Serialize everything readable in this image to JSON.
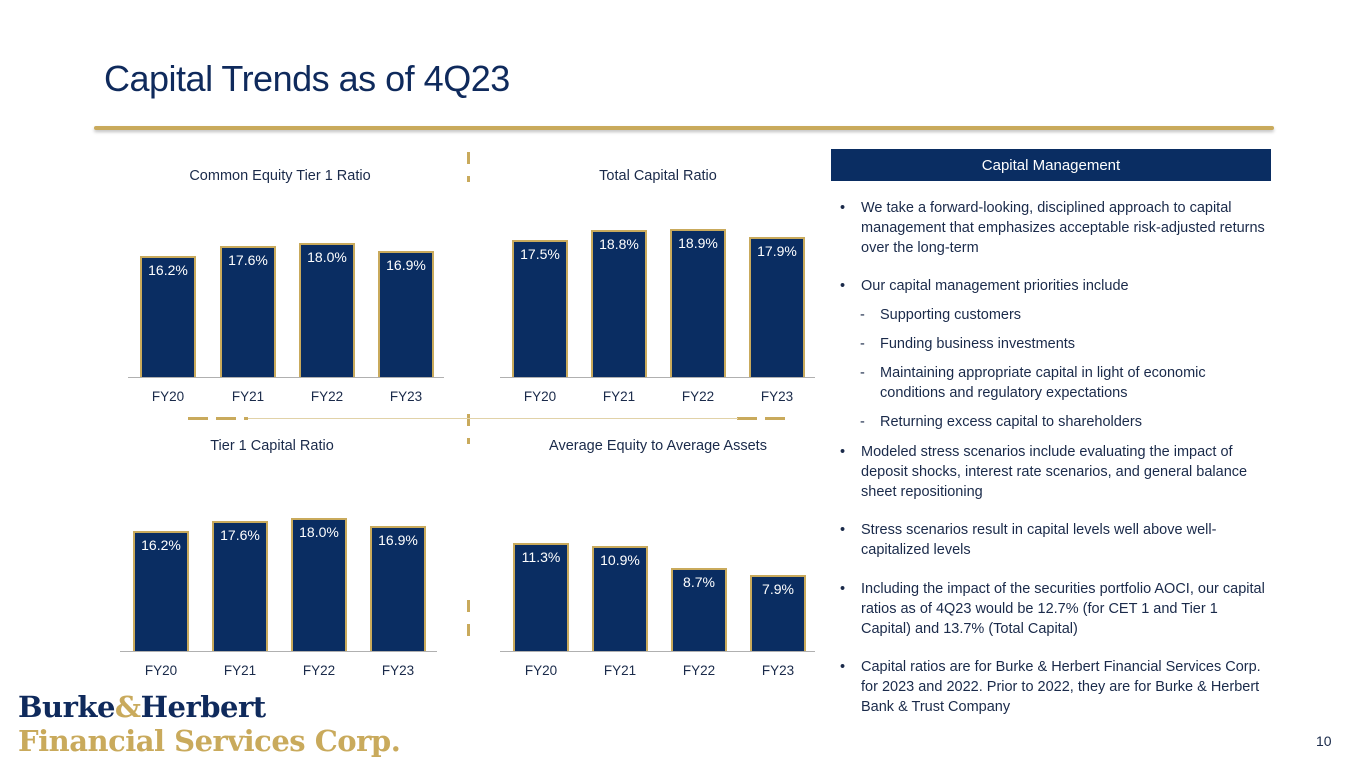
{
  "title": "Capital Trends as of 4Q23",
  "page_number": "10",
  "colors": {
    "navy": "#0a2d62",
    "gold": "#c9aa5c"
  },
  "logo": {
    "line1_a": "Burke",
    "line1_amp": "&",
    "line1_b": "Herbert",
    "line2": "Financial Services Corp."
  },
  "chart_data": [
    {
      "type": "bar",
      "title": "Common Equity Tier 1 Ratio",
      "categories": [
        "FY20",
        "FY21",
        "FY22",
        "FY23"
      ],
      "values": [
        16.2,
        17.6,
        18.0,
        16.9
      ],
      "labels": [
        "16.2%",
        "17.6%",
        "18.0%",
        "16.9%"
      ],
      "ylim": [
        0,
        18.9
      ]
    },
    {
      "type": "bar",
      "title": "Total Capital Ratio",
      "categories": [
        "FY20",
        "FY21",
        "FY22",
        "FY23"
      ],
      "values": [
        17.5,
        18.8,
        18.9,
        17.9
      ],
      "labels": [
        "17.5%",
        "18.8%",
        "18.9%",
        "17.9%"
      ],
      "ylim": [
        0,
        18.9
      ]
    },
    {
      "type": "bar",
      "title": "Tier 1 Capital Ratio",
      "categories": [
        "FY20",
        "FY21",
        "FY22",
        "FY23"
      ],
      "values": [
        16.2,
        17.6,
        18.0,
        16.9
      ],
      "labels": [
        "16.2%",
        "17.6%",
        "18.0%",
        "16.9%"
      ],
      "ylim": [
        0,
        18.9
      ]
    },
    {
      "type": "bar",
      "title": "Average Equity to Average Assets",
      "categories": [
        "FY20",
        "FY21",
        "FY22",
        "FY23"
      ],
      "values": [
        11.3,
        10.9,
        8.7,
        7.9
      ],
      "labels": [
        "11.3%",
        "10.9%",
        "8.7%",
        "7.9%"
      ],
      "ylim": [
        0,
        12.2
      ]
    }
  ],
  "panel": {
    "header": "Capital Management",
    "b1": "We take a forward-looking, disciplined approach to capital management that emphasizes acceptable risk-adjusted returns over the long-term",
    "b2": "Our capital management priorities include",
    "s1": "Supporting customers",
    "s2": "Funding business investments",
    "s3": "Maintaining appropriate capital in light of economic conditions and regulatory expectations",
    "s4": "Returning excess capital to shareholders",
    "b3": "Modeled stress scenarios include evaluating the impact of deposit shocks, interest rate scenarios, and general balance sheet repositioning",
    "b4": "Stress scenarios result in capital levels well above well-capitalized levels",
    "b5": "Including the impact of the securities portfolio AOCI, our capital ratios as of 4Q23 would be 12.7% (for CET 1 and Tier 1 Capital) and 13.7% (Total Capital)",
    "b6": "Capital ratios are for Burke & Herbert Financial Services Corp. for 2023 and 2022. Prior to 2022, they are for Burke & Herbert Bank & Trust Company"
  }
}
